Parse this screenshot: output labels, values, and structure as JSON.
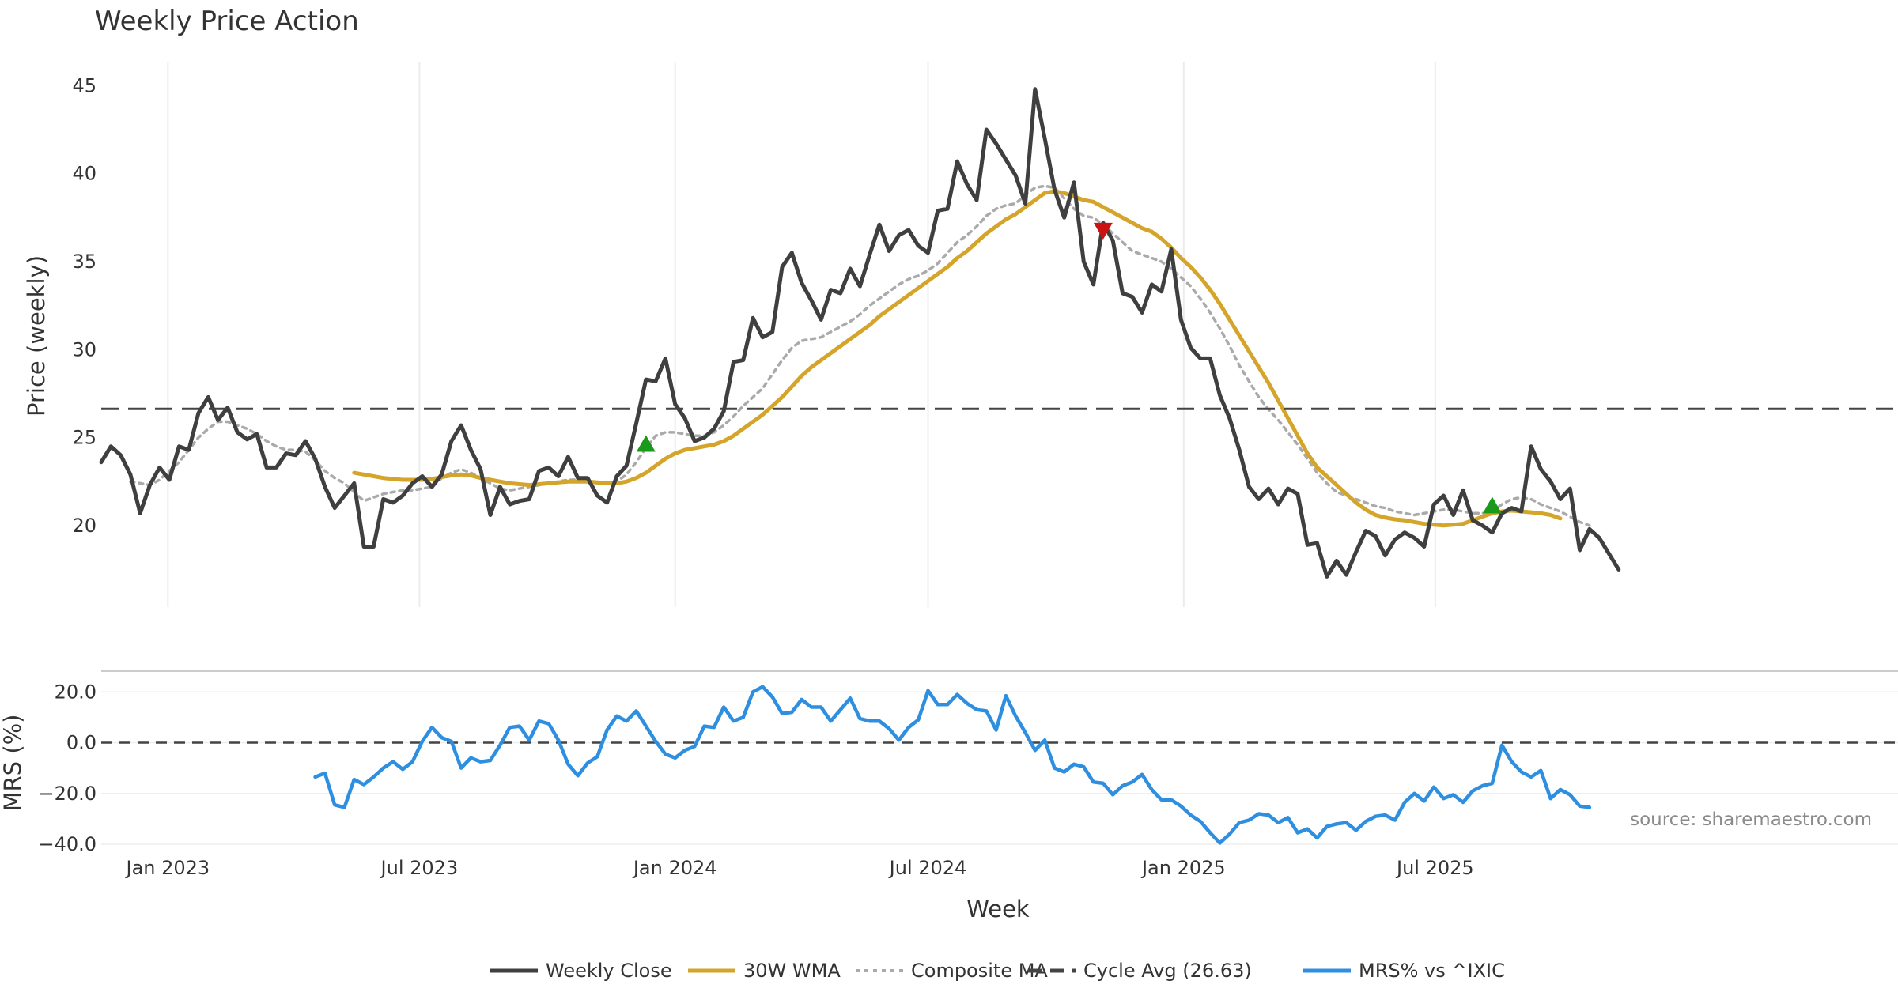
{
  "chart_data": [
    {
      "type": "line",
      "title": "Weekly Price Action",
      "xlabel": "",
      "ylabel": "Price (weekly)",
      "ylim": [
        15.5,
        46.5
      ],
      "yticks": [
        20,
        25,
        30,
        35,
        40,
        45
      ],
      "x_start": "2022-11-14",
      "x_step_days": 7,
      "series": [
        {
          "name": "Weekly Close",
          "color": "#3f3f3f",
          "style": "solid",
          "values": [
            23.6,
            24.5,
            24.0,
            22.9,
            20.7,
            22.3,
            23.3,
            22.6,
            24.5,
            24.3,
            26.4,
            27.3,
            26.0,
            26.7,
            25.3,
            24.9,
            25.2,
            23.3,
            23.3,
            24.1,
            24.0,
            24.8,
            23.8,
            22.2,
            21.0,
            21.7,
            22.4,
            18.8,
            18.8,
            21.5,
            21.3,
            21.7,
            22.4,
            22.8,
            22.2,
            22.9,
            24.8,
            25.7,
            24.3,
            23.2,
            20.6,
            22.2,
            21.2,
            21.4,
            21.5,
            23.1,
            23.3,
            22.8,
            23.9,
            22.7,
            22.7,
            21.7,
            21.3,
            22.8,
            23.4,
            25.8,
            28.3,
            28.2,
            29.5,
            26.9,
            26.1,
            24.8,
            25.0,
            25.5,
            26.5,
            29.3,
            29.4,
            31.8,
            30.7,
            31.0,
            34.7,
            35.5,
            33.8,
            32.8,
            31.7,
            33.4,
            33.2,
            34.6,
            33.6,
            35.4,
            37.1,
            35.6,
            36.5,
            36.8,
            35.9,
            35.5,
            37.9,
            38.0,
            40.7,
            39.4,
            38.5,
            42.5,
            41.7,
            40.8,
            39.9,
            38.3,
            44.8,
            42.0,
            39.1,
            37.5,
            39.5,
            35.0,
            33.7,
            37.2,
            36.2,
            33.2,
            33.0,
            32.1,
            33.7,
            33.3,
            35.7,
            31.7,
            30.1,
            29.5,
            29.5,
            27.4,
            26.1,
            24.3,
            22.2,
            21.5,
            22.1,
            21.2,
            22.1,
            21.8,
            18.9,
            19.0,
            17.1,
            18.0,
            17.2,
            18.5,
            19.7,
            19.4,
            18.3,
            19.2,
            19.6,
            19.3,
            18.8,
            21.2,
            21.7,
            20.6,
            22.0,
            20.3,
            20.0,
            19.6,
            20.7,
            21.0,
            20.8,
            24.5,
            23.2,
            22.5,
            21.5,
            22.1,
            18.6,
            19.8,
            19.3,
            18.4,
            17.5
          ]
        },
        {
          "name": "30W WMA",
          "color": "#d4a52a",
          "style": "solid",
          "start_index": 26,
          "values": [
            23.0,
            22.9,
            22.8,
            22.7,
            22.65,
            22.6,
            22.6,
            22.6,
            22.65,
            22.75,
            22.85,
            22.9,
            22.85,
            22.7,
            22.6,
            22.5,
            22.4,
            22.35,
            22.3,
            22.35,
            22.4,
            22.45,
            22.5,
            22.5,
            22.5,
            22.45,
            22.4,
            22.4,
            22.5,
            22.7,
            23.0,
            23.4,
            23.8,
            24.1,
            24.3,
            24.4,
            24.5,
            24.6,
            24.8,
            25.1,
            25.5,
            25.9,
            26.3,
            26.8,
            27.3,
            27.9,
            28.5,
            29.0,
            29.4,
            29.8,
            30.2,
            30.6,
            31.0,
            31.4,
            31.9,
            32.3,
            32.7,
            33.1,
            33.5,
            33.9,
            34.3,
            34.7,
            35.2,
            35.6,
            36.1,
            36.6,
            37.0,
            37.4,
            37.7,
            38.1,
            38.5,
            38.9,
            39.0,
            38.9,
            38.7,
            38.5,
            38.4,
            38.1,
            37.8,
            37.5,
            37.2,
            36.9,
            36.7,
            36.3,
            35.8,
            35.2,
            34.7,
            34.1,
            33.4,
            32.6,
            31.7,
            30.8,
            29.9,
            29.0,
            28.1,
            27.1,
            26.1,
            25.1,
            24.1,
            23.3,
            22.8,
            22.3,
            21.8,
            21.3,
            20.9,
            20.6,
            20.45,
            20.35,
            20.3,
            20.2,
            20.1,
            20.05,
            20.0,
            20.05,
            20.1,
            20.3,
            20.5,
            20.7,
            20.8,
            20.85,
            20.8,
            20.75,
            20.7,
            20.6,
            20.4
          ]
        },
        {
          "name": "Composite MA",
          "color": "#aaaaaa",
          "style": "dotted",
          "start_index": 3,
          "values": [
            22.5,
            22.4,
            22.3,
            22.6,
            23.1,
            23.6,
            24.3,
            25.0,
            25.5,
            25.9,
            25.9,
            25.7,
            25.5,
            25.2,
            24.8,
            24.5,
            24.3,
            24.3,
            24.2,
            23.7,
            23.1,
            22.7,
            22.4,
            21.9,
            21.4,
            21.6,
            21.8,
            21.9,
            22.0,
            22.0,
            22.1,
            22.2,
            22.7,
            23.0,
            23.2,
            23.0,
            22.7,
            22.4,
            22.1,
            22.0,
            22.1,
            22.2,
            22.3,
            22.4,
            22.5,
            22.6,
            22.6,
            22.5,
            22.4,
            22.4,
            22.5,
            22.9,
            23.6,
            24.4,
            25.1,
            25.3,
            25.3,
            25.2,
            25.1,
            25.1,
            25.3,
            25.7,
            26.2,
            26.8,
            27.3,
            27.8,
            28.6,
            29.4,
            30.1,
            30.5,
            30.6,
            30.7,
            31.0,
            31.3,
            31.6,
            32.0,
            32.5,
            32.9,
            33.3,
            33.7,
            34.0,
            34.2,
            34.5,
            34.9,
            35.5,
            36.1,
            36.5,
            37.0,
            37.6,
            38.0,
            38.2,
            38.3,
            38.8,
            39.2,
            39.3,
            39.2,
            38.6,
            38.0,
            37.6,
            37.5,
            37.1,
            36.6,
            36.1,
            35.6,
            35.4,
            35.2,
            35.0,
            34.6,
            34.1,
            33.6,
            32.9,
            32.1,
            31.2,
            30.2,
            29.1,
            28.2,
            27.3,
            26.6,
            26.0,
            25.3,
            24.6,
            23.8,
            23.0,
            22.4,
            21.9,
            21.7,
            21.5,
            21.3,
            21.1,
            21.0,
            20.8,
            20.7,
            20.6,
            20.7,
            20.8,
            20.9,
            20.9,
            20.8,
            20.7,
            20.7,
            20.8,
            21.2,
            21.5,
            21.6,
            21.5,
            21.2,
            21.0,
            20.8,
            20.5,
            20.2,
            20.0
          ]
        },
        {
          "name": "Cycle Avg (26.63)",
          "color": "#444444",
          "style": "dashed",
          "value": 26.63
        }
      ],
      "markers": [
        {
          "type": "buy",
          "symbol": "triangle-up",
          "color": "#1a9a1a",
          "index": 56,
          "y": 24.6
        },
        {
          "type": "sell",
          "symbol": "triangle-down",
          "color": "#cc1111",
          "index": 103,
          "y": 36.8
        },
        {
          "type": "buy",
          "symbol": "triangle-up",
          "color": "#1a9a1a",
          "index": 143,
          "y": 21.1
        }
      ]
    },
    {
      "type": "line",
      "title": "",
      "xlabel": "Week",
      "ylabel": "MRS (%)",
      "ylim": [
        -40,
        26
      ],
      "yticks": [
        "−40.0",
        "−20.0",
        "0.0",
        "20.0"
      ],
      "ytick_values": [
        -40,
        -20,
        0,
        20
      ],
      "x_ticks": [
        "Jan 2023",
        "Jul 2023",
        "Jan 2024",
        "Jul 2024",
        "Jan 2025",
        "Jul 2025"
      ],
      "series": [
        {
          "name": "MRS% vs ^IXIC",
          "color": "#2e8fe0",
          "style": "solid",
          "start_index": 22,
          "values": [
            -13.5,
            -12.0,
            -24.5,
            -25.5,
            -14.5,
            -16.5,
            -13.5,
            -10.0,
            -7.5,
            -10.5,
            -7.5,
            0.5,
            6.0,
            2.0,
            0.5,
            -10.0,
            -6.0,
            -7.5,
            -7.0,
            -1.0,
            6.0,
            6.5,
            1.0,
            8.5,
            7.5,
            1.0,
            -8.5,
            -13.0,
            -8.0,
            -5.5,
            5.0,
            10.5,
            8.5,
            12.5,
            6.5,
            0.5,
            -4.5,
            -6.0,
            -3.0,
            -1.5,
            6.5,
            6.0,
            14.0,
            8.5,
            10.0,
            20.0,
            22.0,
            18.0,
            11.5,
            12.0,
            17.0,
            14.0,
            14.0,
            8.5,
            13.0,
            17.5,
            9.5,
            8.5,
            8.5,
            5.5,
            1.0,
            6.0,
            9.0,
            20.5,
            15.0,
            15.0,
            19.0,
            15.5,
            13.0,
            12.5,
            5.0,
            18.5,
            10.5,
            4.0,
            -3.0,
            1.0,
            -10.0,
            -11.5,
            -8.5,
            -9.5,
            -15.5,
            -16.0,
            -20.5,
            -17.0,
            -15.5,
            -12.5,
            -18.5,
            -22.5,
            -22.5,
            -25.0,
            -28.5,
            -31.0,
            -35.5,
            -39.5,
            -36.0,
            -31.5,
            -30.5,
            -28.0,
            -28.5,
            -31.5,
            -29.5,
            -35.5,
            -34.0,
            -37.5,
            -33.0,
            -32.0,
            -31.5,
            -34.5,
            -31.0,
            -29.0,
            -28.5,
            -30.5,
            -23.5,
            -20.0,
            -23.0,
            -17.5,
            -22.0,
            -20.5,
            -23.5,
            -19.0,
            -17.0,
            -16.0,
            -1.0,
            -7.5,
            -11.5,
            -13.5,
            -11.0,
            -22.0,
            -18.5,
            -20.5,
            -25.0,
            -25.5
          ]
        },
        {
          "name": "zero",
          "color": "#444444",
          "style": "dashed",
          "value": 0
        }
      ]
    }
  ],
  "legend": [
    {
      "label": "Weekly Close",
      "color": "#3f3f3f",
      "style": "solid"
    },
    {
      "label": "30W WMA",
      "color": "#d4a52a",
      "style": "solid"
    },
    {
      "label": "Composite MA",
      "color": "#aaaaaa",
      "style": "dotted"
    },
    {
      "label": "Cycle Avg (26.63)",
      "color": "#444444",
      "style": "dashed"
    },
    {
      "label": "MRS% vs ^IXIC",
      "color": "#2e8fe0",
      "style": "solid"
    }
  ],
  "source_text": "source: sharemaestro.com"
}
